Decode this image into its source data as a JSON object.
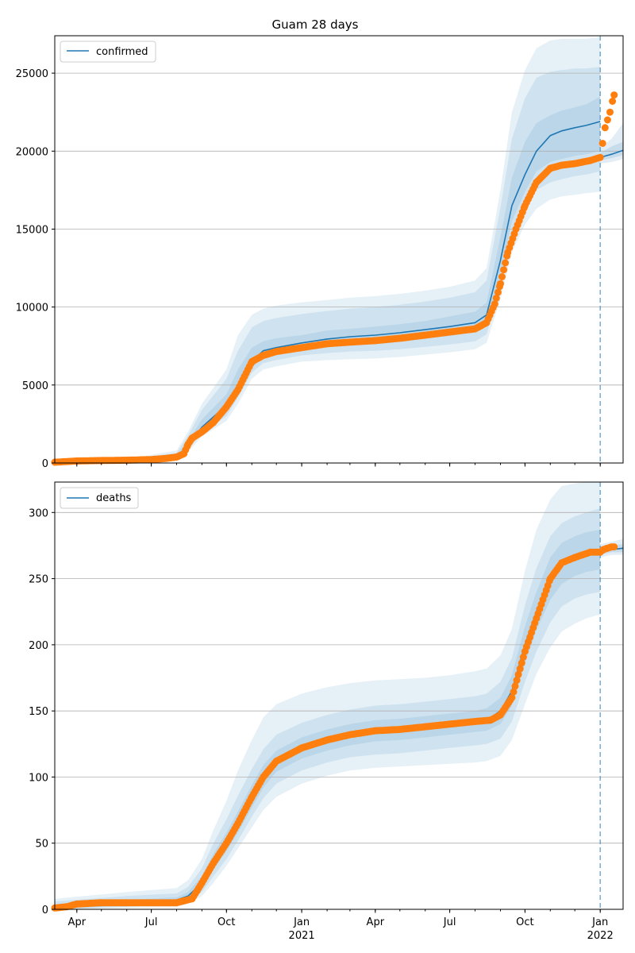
{
  "title": "Guam 28 days",
  "colors": {
    "line": "#1f77b4",
    "band": "#1f77b4",
    "observed": "#ff7f0e",
    "grid": "#b0b0b0",
    "vline": "#1f77b4"
  },
  "x_ticks": [
    {
      "date": "2020-04-01",
      "label": "Apr",
      "sub": ""
    },
    {
      "date": "2020-07-01",
      "label": "Jul",
      "sub": ""
    },
    {
      "date": "2020-10-01",
      "label": "Oct",
      "sub": ""
    },
    {
      "date": "2021-01-01",
      "label": "Jan",
      "sub": "2021"
    },
    {
      "date": "2021-04-01",
      "label": "Apr",
      "sub": ""
    },
    {
      "date": "2021-07-01",
      "label": "Jul",
      "sub": ""
    },
    {
      "date": "2021-10-01",
      "label": "Oct",
      "sub": ""
    },
    {
      "date": "2022-01-01",
      "label": "Jan",
      "sub": "2022"
    }
  ],
  "chart_data": [
    {
      "type": "line",
      "title": "Guam 28 days",
      "legend": [
        "confirmed"
      ],
      "legend_position": "upper-left",
      "grid": "y",
      "xlim": [
        "2020-03-05",
        "2022-01-29"
      ],
      "ylim": [
        0,
        27400
      ],
      "yticks": [
        0,
        5000,
        10000,
        15000,
        20000,
        25000
      ],
      "forecast_start": "2022-01-01",
      "observed": {
        "x": [
          "2020-03-05",
          "2020-04-01",
          "2020-05-01",
          "2020-06-01",
          "2020-07-01",
          "2020-07-20",
          "2020-08-01",
          "2020-08-10",
          "2020-08-15",
          "2020-08-20",
          "2020-09-01",
          "2020-09-15",
          "2020-10-01",
          "2020-10-15",
          "2020-11-01",
          "2020-11-15",
          "2020-12-01",
          "2021-01-01",
          "2021-02-01",
          "2021-03-01",
          "2021-04-01",
          "2021-05-01",
          "2021-06-01",
          "2021-07-01",
          "2021-08-01",
          "2021-08-15",
          "2021-08-25",
          "2021-09-01",
          "2021-09-10",
          "2021-09-20",
          "2021-10-01",
          "2021-10-15",
          "2021-11-01",
          "2021-11-15",
          "2021-12-01",
          "2021-12-20",
          "2022-01-01",
          "2022-01-04",
          "2022-01-07",
          "2022-01-10",
          "2022-01-13",
          "2022-01-16",
          "2022-01-18"
        ],
        "y": [
          50,
          130,
          160,
          180,
          220,
          300,
          380,
          600,
          1200,
          1600,
          2000,
          2600,
          3600,
          4700,
          6500,
          6900,
          7150,
          7400,
          7650,
          7750,
          7850,
          8000,
          8200,
          8400,
          8600,
          9000,
          10200,
          11500,
          13500,
          15000,
          16500,
          18000,
          18900,
          19100,
          19200,
          19400,
          19600,
          20500,
          21500,
          22000,
          22500,
          23200,
          23600
        ]
      },
      "model": {
        "x": [
          "2020-03-05",
          "2020-06-01",
          "2020-08-01",
          "2020-08-15",
          "2020-09-01",
          "2020-10-01",
          "2020-10-15",
          "2020-11-01",
          "2020-11-15",
          "2020-12-01",
          "2021-01-01",
          "2021-02-01",
          "2021-03-01",
          "2021-04-01",
          "2021-05-01",
          "2021-06-01",
          "2021-07-01",
          "2021-08-01",
          "2021-08-15",
          "2021-09-01",
          "2021-09-15",
          "2021-10-01",
          "2021-10-15",
          "2021-11-01",
          "2021-11-15",
          "2021-12-01",
          "2021-12-15",
          "2022-01-01"
        ],
        "y": [
          50,
          150,
          400,
          1100,
          2300,
          3700,
          5000,
          6500,
          7200,
          7400,
          7700,
          7950,
          8100,
          8200,
          8350,
          8550,
          8750,
          9000,
          9500,
          13000,
          16500,
          18500,
          20000,
          21000,
          21300,
          21500,
          21650,
          21900
        ]
      },
      "forecast": {
        "x": [
          "2022-01-01",
          "2022-01-15",
          "2022-01-29"
        ],
        "y": [
          19600,
          19800,
          20050
        ]
      },
      "bands": [
        {
          "lo": [
            40,
            100,
            200,
            700,
            1700,
            2700,
            3800,
            5400,
            6000,
            6200,
            6500,
            6600,
            6650,
            6700,
            6800,
            6950,
            7100,
            7300,
            7700,
            10500,
            13500,
            15300,
            16300,
            16900,
            17100,
            17200,
            17300,
            17400
          ],
          "hi": [
            60,
            250,
            800,
            2000,
            3800,
            6000,
            8200,
            9500,
            9900,
            10100,
            10300,
            10450,
            10600,
            10700,
            10850,
            11050,
            11300,
            11700,
            12500,
            17500,
            22500,
            25200,
            26600,
            27100,
            27200,
            27200,
            27200,
            27300
          ]
        },
        {
          "lo": [
            42,
            120,
            280,
            850,
            1900,
            3000,
            4200,
            5800,
            6400,
            6600,
            6900,
            7050,
            7150,
            7200,
            7300,
            7450,
            7600,
            7800,
            8250,
            11300,
            14500,
            16300,
            17500,
            18000,
            18200,
            18400,
            18500,
            18700
          ],
          "hi": [
            58,
            210,
            650,
            1750,
            3400,
            5400,
            7200,
            8700,
            9100,
            9300,
            9550,
            9750,
            9900,
            10000,
            10150,
            10350,
            10600,
            10950,
            11700,
            16400,
            20800,
            23400,
            24700,
            25100,
            25200,
            25300,
            25300,
            25400
          ]
        },
        {
          "lo": [
            45,
            135,
            340,
            980,
            2100,
            3300,
            4600,
            6100,
            6800,
            7000,
            7250,
            7450,
            7600,
            7700,
            7850,
            8000,
            8150,
            8400,
            8850,
            12200,
            15500,
            17400,
            18700,
            19300,
            19500,
            19700,
            19800,
            20000
          ],
          "hi": [
            55,
            170,
            500,
            1400,
            2800,
            4400,
            6000,
            7400,
            7800,
            8000,
            8200,
            8500,
            8600,
            8750,
            8900,
            9100,
            9400,
            9700,
            10300,
            14500,
            18300,
            20600,
            21800,
            22300,
            22600,
            22800,
            23000,
            23500
          ]
        }
      ],
      "forecast_bands": [
        {
          "lo": [
            19200,
            19300,
            19500
          ],
          "hi": [
            20200,
            20800,
            21800
          ]
        },
        {
          "lo": [
            19400,
            19550,
            19750
          ],
          "hi": [
            19900,
            20300,
            20600
          ]
        }
      ]
    },
    {
      "type": "line",
      "legend": [
        "deaths"
      ],
      "legend_position": "upper-left",
      "grid": "y",
      "xlim": [
        "2020-03-05",
        "2022-01-29"
      ],
      "ylim": [
        0,
        323
      ],
      "yticks": [
        0,
        50,
        100,
        150,
        200,
        250,
        300
      ],
      "forecast_start": "2022-01-01",
      "observed": {
        "x": [
          "2020-03-05",
          "2020-03-20",
          "2020-04-01",
          "2020-05-01",
          "2020-06-01",
          "2020-07-01",
          "2020-08-01",
          "2020-08-20",
          "2020-09-01",
          "2020-09-15",
          "2020-10-01",
          "2020-10-15",
          "2020-11-01",
          "2020-11-15",
          "2020-12-01",
          "2021-01-01",
          "2021-02-01",
          "2021-03-01",
          "2021-04-01",
          "2021-05-01",
          "2021-06-01",
          "2021-07-01",
          "2021-08-01",
          "2021-08-20",
          "2021-09-01",
          "2021-09-15",
          "2021-10-01",
          "2021-10-15",
          "2021-11-01",
          "2021-11-15",
          "2021-12-01",
          "2021-12-20",
          "2022-01-01",
          "2022-01-05",
          "2022-01-10",
          "2022-01-15",
          "2022-01-18"
        ],
        "y": [
          1,
          2,
          4,
          5,
          5,
          5,
          5,
          8,
          20,
          35,
          50,
          65,
          85,
          100,
          112,
          122,
          128,
          132,
          135,
          136,
          138,
          140,
          142,
          143,
          147,
          160,
          195,
          220,
          250,
          262,
          266,
          270,
          270,
          272,
          273,
          274,
          274
        ]
      },
      "model": {
        "x": [
          "2020-03-05",
          "2020-06-01",
          "2020-08-01",
          "2020-08-15",
          "2020-09-01",
          "2020-09-15",
          "2020-10-01",
          "2020-10-15",
          "2020-11-01",
          "2020-11-15",
          "2020-12-01",
          "2021-01-01",
          "2021-02-01",
          "2021-03-01",
          "2021-04-01",
          "2021-05-01",
          "2021-06-01",
          "2021-07-01",
          "2021-08-01",
          "2021-08-15",
          "2021-09-01",
          "2021-09-15",
          "2021-10-01",
          "2021-10-15",
          "2021-11-01",
          "2021-11-15",
          "2021-12-01",
          "2021-12-15",
          "2022-01-01"
        ],
        "y": [
          1,
          5,
          7,
          10,
          20,
          35,
          50,
          65,
          85,
          100,
          112,
          122,
          128,
          132,
          135,
          136,
          138,
          140,
          142,
          143,
          150,
          165,
          200,
          225,
          250,
          262,
          266,
          268,
          270
        ]
      },
      "forecast": {
        "x": [
          "2022-01-01",
          "2022-01-15",
          "2022-01-29"
        ],
        "y": [
          270,
          272,
          273
        ]
      },
      "bands": [
        {
          "lo": [
            0,
            1,
            2,
            4,
            10,
            20,
            33,
            46,
            62,
            75,
            85,
            95,
            101,
            105,
            107,
            108,
            109,
            110,
            111,
            112,
            116,
            128,
            155,
            178,
            198,
            210,
            216,
            220,
            223
          ],
          "hi": [
            8,
            13,
            16,
            22,
            38,
            60,
            82,
            105,
            128,
            145,
            155,
            163,
            168,
            171,
            173,
            174,
            175,
            177,
            180,
            182,
            192,
            212,
            256,
            287,
            310,
            320,
            322,
            323,
            323
          ]
        },
        {
          "lo": [
            0,
            2,
            4,
            6,
            13,
            25,
            38,
            52,
            70,
            84,
            95,
            105,
            111,
            115,
            117,
            118,
            120,
            122,
            124,
            125,
            129,
            142,
            172,
            195,
            217,
            229,
            235,
            238,
            240
          ],
          "hi": [
            6,
            10,
            12,
            17,
            31,
            50,
            68,
            86,
            106,
            121,
            132,
            141,
            147,
            151,
            154,
            155,
            157,
            159,
            161,
            163,
            172,
            190,
            230,
            258,
            282,
            292,
            297,
            300,
            303
          ]
        },
        {
          "lo": [
            0,
            3,
            5,
            8,
            16,
            30,
            44,
            58,
            77,
            92,
            104,
            114,
            120,
            124,
            127,
            128,
            130,
            132,
            134,
            135,
            140,
            154,
            186,
            211,
            234,
            246,
            252,
            255,
            257
          ],
          "hi": [
            3,
            7,
            9,
            13,
            25,
            42,
            58,
            74,
            94,
            109,
            120,
            130,
            136,
            140,
            143,
            144,
            146,
            148,
            150,
            152,
            160,
            177,
            214,
            240,
            266,
            277,
            282,
            285,
            287
          ]
        }
      ],
      "forecast_bands": [
        {
          "lo": [
            266,
            268,
            268
          ],
          "hi": [
            276,
            278,
            280
          ]
        },
        {
          "lo": [
            268,
            270,
            270
          ],
          "hi": [
            273,
            275,
            276
          ]
        }
      ]
    }
  ]
}
